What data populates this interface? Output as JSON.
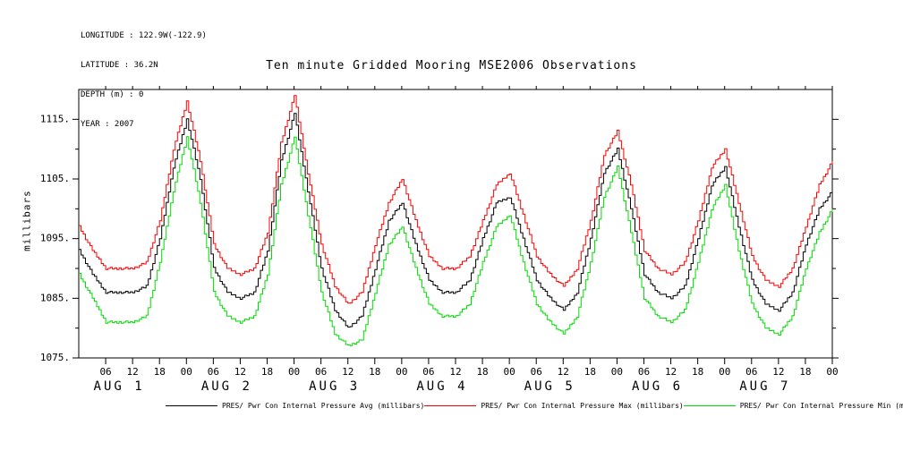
{
  "info": {
    "longitude": "LONGITUDE : 122.9W(-122.9)",
    "latitude": "LATITUDE : 36.2N",
    "depth": "DEPTH (m) : 0",
    "year": "YEAR : 2007"
  },
  "title": "Ten minute Gridded Mooring MSE2006 Observations",
  "ylabel": "millibars",
  "legend": {
    "entries": [
      {
        "label": "PRES/ Pwr Con Internal Pressure Avg (millibars)",
        "color": "#000000"
      },
      {
        "label": "PRES/ Pwr Con Internal Pressure Max (millibars)",
        "color": "#ff0000"
      },
      {
        "label": "PRES/ Pwr Con Internal Pressure Min (millibars)",
        "color": "#00dd00"
      }
    ]
  },
  "chart_data": {
    "type": "line",
    "title": "Ten minute Gridded Mooring MSE2006 Observations",
    "xlabel": "",
    "ylabel": "millibars",
    "x_unit": "hours since 2007-08-01 00:00",
    "ylim": [
      1075,
      1120
    ],
    "y_ticks": [
      1075,
      1085,
      1095,
      1105,
      1115
    ],
    "y_tick_labels": [
      "1075.",
      "1085.",
      "1095.",
      "1105.",
      "1115."
    ],
    "y_minor_ticks": [
      1080,
      1090,
      1100,
      1110
    ],
    "x_tick_hours": [
      6,
      12,
      18,
      24,
      30,
      36,
      42,
      48,
      54,
      60,
      66,
      72,
      78,
      84,
      90,
      96,
      102,
      108,
      114,
      120,
      126,
      132,
      138,
      144,
      150,
      156,
      162,
      168
    ],
    "x_tick_labels": [
      "06",
      "12",
      "18",
      "00",
      "06",
      "12",
      "18",
      "00",
      "06",
      "12",
      "18",
      "00",
      "06",
      "12",
      "18",
      "00",
      "06",
      "12",
      "18",
      "00",
      "06",
      "12",
      "18",
      "00",
      "06",
      "12",
      "18",
      "00"
    ],
    "day_labels": [
      {
        "label": "AUG 1",
        "hour": 9
      },
      {
        "label": "AUG 2",
        "hour": 33
      },
      {
        "label": "AUG 3",
        "hour": 57
      },
      {
        "label": "AUG 4",
        "hour": 81
      },
      {
        "label": "AUG 5",
        "hour": 105
      },
      {
        "label": "AUG 6",
        "hour": 129
      },
      {
        "label": "AUG 7",
        "hour": 153
      }
    ],
    "grid": false,
    "legend_position": "bottom",
    "x": [
      0,
      3,
      6,
      9,
      12,
      15,
      18,
      21,
      24,
      27,
      30,
      33,
      36,
      39,
      42,
      45,
      48,
      51,
      54,
      57,
      60,
      63,
      66,
      69,
      72,
      75,
      78,
      81,
      84,
      87,
      90,
      93,
      96,
      99,
      102,
      105,
      108,
      111,
      114,
      117,
      120,
      123,
      126,
      129,
      132,
      135,
      138,
      141,
      144,
      147,
      150,
      153,
      156,
      159,
      162,
      165,
      168
    ],
    "series": [
      {
        "name": "PRES/ Pwr Con Internal Pressure Avg (millibars)",
        "color": "#000000",
        "values": [
          1093,
          1089,
          1086,
          1086,
          1086,
          1087,
          1095,
          1107,
          1115,
          1105,
          1090,
          1086,
          1085,
          1086,
          1093,
          1108,
          1116,
          1103,
          1090,
          1083,
          1080,
          1082,
          1090,
          1098,
          1101,
          1094,
          1088,
          1086,
          1086,
          1088,
          1095,
          1101,
          1102,
          1095,
          1088,
          1085,
          1083,
          1086,
          1095,
          1106,
          1110,
          1100,
          1089,
          1086,
          1085,
          1087,
          1095,
          1104,
          1107,
          1097,
          1088,
          1084,
          1083,
          1086,
          1094,
          1100,
          1103
        ]
      },
      {
        "name": "PRES/ Pwr Con Internal Pressure Max (millibars)",
        "color": "#ff0000",
        "values": [
          1097,
          1093,
          1090,
          1090,
          1090,
          1091,
          1098,
          1110,
          1118,
          1108,
          1094,
          1090,
          1089,
          1090,
          1096,
          1111,
          1119,
          1106,
          1094,
          1087,
          1084,
          1086,
          1094,
          1101,
          1105,
          1098,
          1092,
          1090,
          1090,
          1092,
          1098,
          1104,
          1106,
          1099,
          1092,
          1089,
          1087,
          1090,
          1098,
          1109,
          1113,
          1104,
          1093,
          1090,
          1089,
          1091,
          1098,
          1107,
          1110,
          1101,
          1092,
          1088,
          1087,
          1090,
          1097,
          1104,
          1108
        ]
      },
      {
        "name": "PRES/ Pwr Con Internal Pressure Min (millibars)",
        "color": "#00dd00",
        "values": [
          1089,
          1085,
          1081,
          1081,
          1081,
          1082,
          1091,
          1103,
          1112,
          1101,
          1086,
          1082,
          1081,
          1082,
          1089,
          1104,
          1112,
          1099,
          1086,
          1079,
          1077,
          1078,
          1086,
          1094,
          1097,
          1090,
          1084,
          1082,
          1082,
          1084,
          1091,
          1097,
          1099,
          1091,
          1084,
          1081,
          1079,
          1082,
          1091,
          1102,
          1107,
          1096,
          1085,
          1082,
          1081,
          1083,
          1091,
          1100,
          1104,
          1093,
          1084,
          1080,
          1079,
          1082,
          1090,
          1096,
          1100
        ]
      }
    ]
  }
}
